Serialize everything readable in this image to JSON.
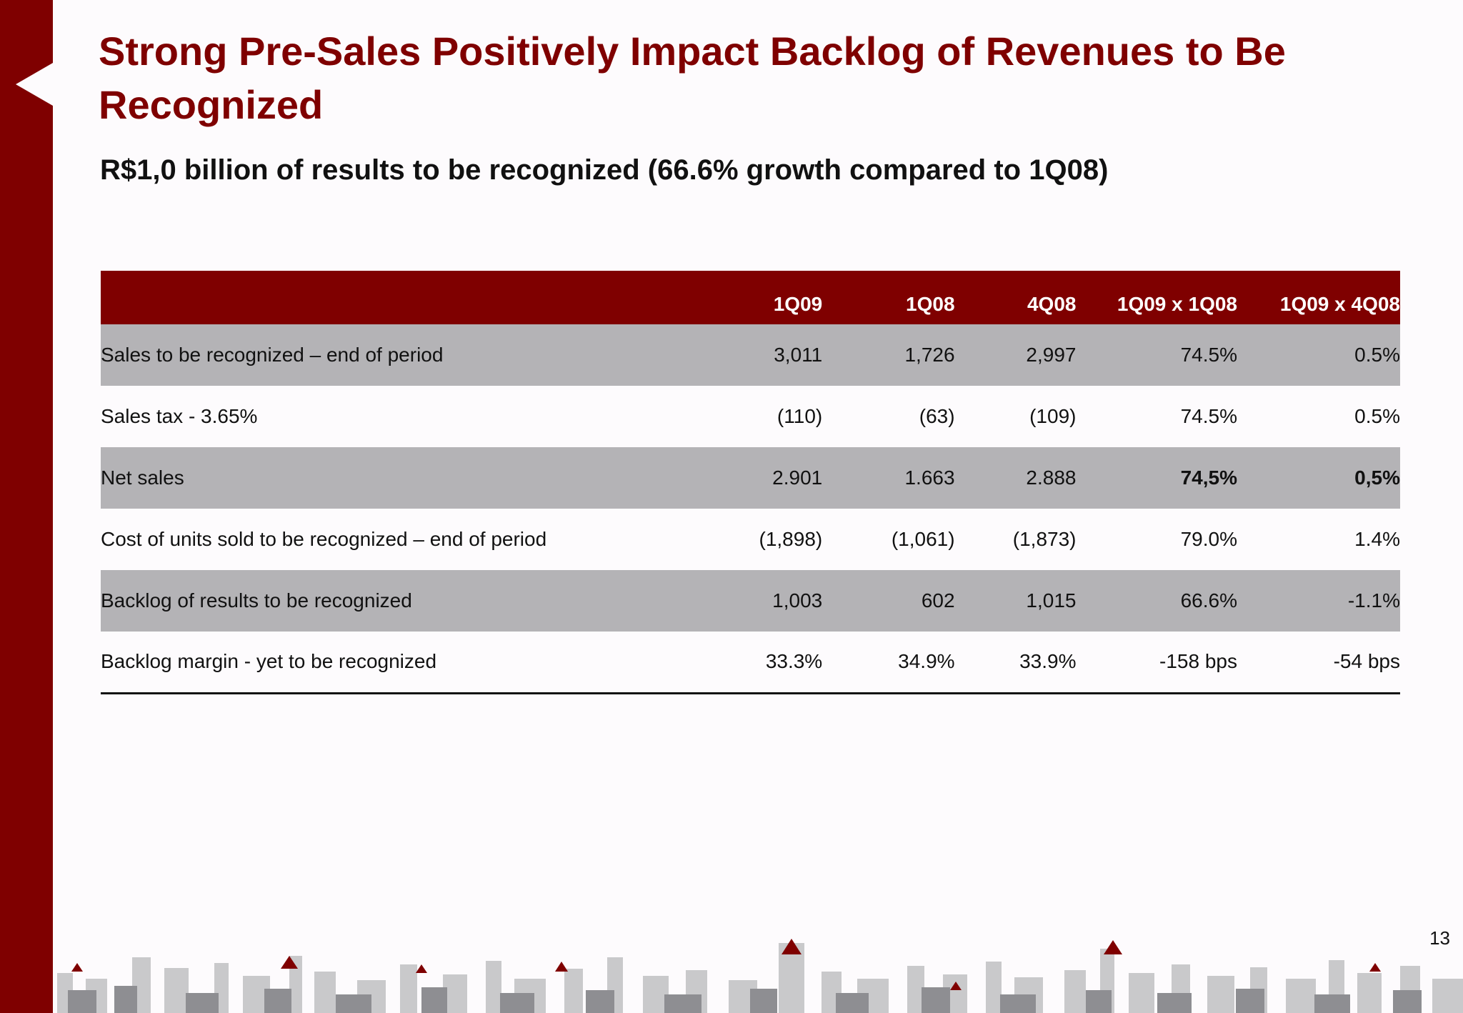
{
  "slide": {
    "title": "Strong Pre-Sales Positively Impact Backlog of Revenues to Be Recognized",
    "subtitle": "R$1,0 billion of results to be recognized (66.6% growth compared to 1Q08)",
    "page_number": "13"
  },
  "colors": {
    "brand": "#7f0000",
    "row_shade": "#b4b3b6",
    "background": "#fdfbfd"
  },
  "table": {
    "headers": [
      "",
      "1Q09",
      "1Q08",
      "4Q08",
      "1Q09 x 1Q08",
      "1Q09 x 4Q08"
    ],
    "rows": [
      {
        "label": "Sales to be recognized – end of period",
        "cells": [
          "3,011",
          "1,726",
          "2,997",
          "74.5%",
          "0.5%"
        ]
      },
      {
        "label": "Sales tax - 3.65%",
        "cells": [
          "(110)",
          "(63)",
          "(109)",
          "74.5%",
          "0.5%"
        ]
      },
      {
        "label": "Net sales",
        "cells": [
          "2.901",
          "1.663",
          "2.888",
          "74,5%",
          "0,5%"
        ]
      },
      {
        "label": "Cost of units sold to be recognized – end of period",
        "cells": [
          "(1,898)",
          "(1,061)",
          "(1,873)",
          "79.0%",
          "1.4%"
        ]
      },
      {
        "label": "Backlog of results to be recognized",
        "cells": [
          "1,003",
          "602",
          "1,015",
          "66.6%",
          "-1.1%"
        ]
      },
      {
        "label": "Backlog margin - yet to be recognized",
        "cells": [
          "33.3%",
          "34.9%",
          "33.9%",
          "-158 bps",
          "-54 bps"
        ]
      }
    ]
  },
  "decor": {
    "side_bar": "brand-side-bar",
    "footer": "city-skyline-illustration",
    "logo_marks": "triangle-logo-icon"
  }
}
